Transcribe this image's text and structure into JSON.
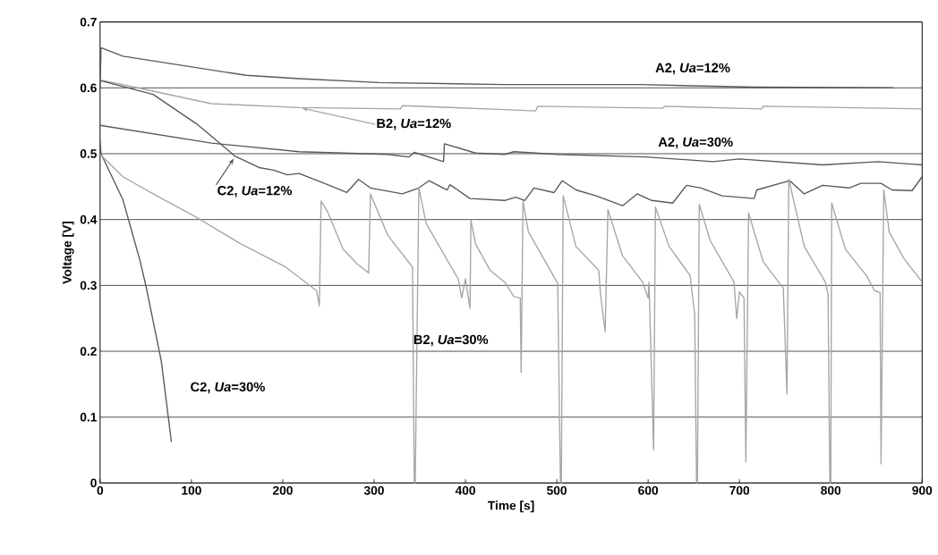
{
  "chart_data": {
    "type": "line",
    "xlabel": "Time [s]",
    "ylabel": "Voltage [V]",
    "xlim": [
      0,
      900
    ],
    "ylim": [
      0,
      0.7
    ],
    "xticks": [
      0,
      100,
      200,
      300,
      400,
      500,
      600,
      700,
      800,
      900
    ],
    "yticks": [
      0,
      0.1,
      0.2,
      0.3,
      0.4,
      0.5,
      0.6,
      0.7
    ],
    "grid": "y",
    "marker": "none",
    "line_style": "solid",
    "series": [
      {
        "name": "A2, *Ua*=12%",
        "color": "#595959",
        "x": [
          0,
          1,
          25,
          160,
          218,
          305,
          443,
          591,
          716,
          868
        ],
        "values": [
          0.6,
          0.661,
          0.648,
          0.619,
          0.614,
          0.608,
          0.605,
          0.605,
          0.601,
          0.6
        ]
      },
      {
        "name": "B2, *Ua*=12%",
        "color": "#a6a6a6",
        "x": [
          0,
          58,
          122,
          218,
          329,
          331,
          443,
          477,
          479,
          616,
          618,
          724,
          726,
          900
        ],
        "values": [
          0.612,
          0.595,
          0.576,
          0.57,
          0.568,
          0.573,
          0.567,
          0.565,
          0.572,
          0.569,
          0.572,
          0.568,
          0.572,
          0.568
        ]
      },
      {
        "name": "A2, *Ua*=30%",
        "color": "#595959",
        "x": [
          0,
          122,
          218,
          315,
          338,
          344,
          376,
          377,
          411,
          443,
          453,
          501,
          598,
          671,
          700,
          791,
          852,
          900
        ],
        "values": [
          0.543,
          0.516,
          0.503,
          0.499,
          0.495,
          0.502,
          0.488,
          0.515,
          0.501,
          0.499,
          0.503,
          0.499,
          0.495,
          0.488,
          0.492,
          0.483,
          0.488,
          0.483
        ]
      },
      {
        "name": "C2, *Ua*=12%",
        "color": "#595959",
        "x": [
          0,
          58,
          106,
          148,
          174,
          190,
          205,
          218,
          251,
          270,
          283,
          296,
          331,
          349,
          360,
          380,
          383,
          405,
          443,
          455,
          465,
          475,
          497,
          506,
          521,
          543,
          572,
          588,
          604,
          627,
          642,
          658,
          681,
          716,
          719,
          755,
          771,
          791,
          820,
          833,
          855,
          867,
          889,
          900
        ],
        "values": [
          0.611,
          0.59,
          0.545,
          0.496,
          0.479,
          0.475,
          0.468,
          0.47,
          0.452,
          0.441,
          0.461,
          0.448,
          0.439,
          0.448,
          0.459,
          0.445,
          0.453,
          0.432,
          0.429,
          0.434,
          0.429,
          0.448,
          0.441,
          0.459,
          0.445,
          0.436,
          0.421,
          0.439,
          0.429,
          0.425,
          0.452,
          0.448,
          0.436,
          0.432,
          0.445,
          0.459,
          0.439,
          0.452,
          0.448,
          0.455,
          0.455,
          0.445,
          0.444,
          0.465
        ]
      },
      {
        "name": "C2, *Ua*=30%",
        "color": "#595959",
        "x": [
          0,
          1,
          25,
          44,
          51,
          67,
          78
        ],
        "values": [
          0.519,
          0.5,
          0.43,
          0.336,
          0.294,
          0.185,
          0.063
        ]
      },
      {
        "name": "B2, *Ua*=30%",
        "color": "#a6a6a6",
        "x": [
          0,
          25,
          58,
          106,
          154,
          203,
          237,
          240,
          242,
          249,
          266,
          282,
          294,
          296,
          315,
          342,
          344,
          345,
          349,
          357,
          392,
          396,
          400,
          405,
          406,
          411,
          427,
          443,
          453,
          460,
          461,
          463,
          469,
          488,
          501,
          504,
          505,
          507,
          521,
          546,
          548,
          553,
          556,
          572,
          594,
          600,
          601,
          606,
          608,
          623,
          646,
          651,
          653,
          654,
          656,
          668,
          694,
          697,
          700,
          705,
          707,
          710,
          726,
          748,
          752,
          754,
          771,
          794,
          797,
          799,
          800,
          801,
          816,
          839,
          848,
          854,
          855,
          858,
          864,
          880,
          900
        ],
        "values": [
          0.499,
          0.465,
          0.439,
          0.403,
          0.363,
          0.328,
          0.292,
          0.269,
          0.428,
          0.412,
          0.355,
          0.332,
          0.319,
          0.439,
          0.376,
          0.328,
          0,
          0,
          0.448,
          0.394,
          0.31,
          0.281,
          0.31,
          0.265,
          0.399,
          0.363,
          0.323,
          0.305,
          0.283,
          0.281,
          0.168,
          0.428,
          0.381,
          0.335,
          0.303,
          0,
          0,
          0.436,
          0.359,
          0.323,
          0.285,
          0.23,
          0.415,
          0.345,
          0.305,
          0.281,
          0.305,
          0.05,
          0.419,
          0.359,
          0.315,
          0.256,
          0,
          0,
          0.423,
          0.368,
          0.305,
          0.25,
          0.29,
          0.281,
          0.032,
          0.41,
          0.336,
          0.296,
          0.135,
          0.461,
          0.359,
          0.305,
          0.287,
          0,
          0,
          0.425,
          0.355,
          0.315,
          0.292,
          0.289,
          0.029,
          0.445,
          0.381,
          0.341,
          0.305
        ]
      }
    ]
  }
}
